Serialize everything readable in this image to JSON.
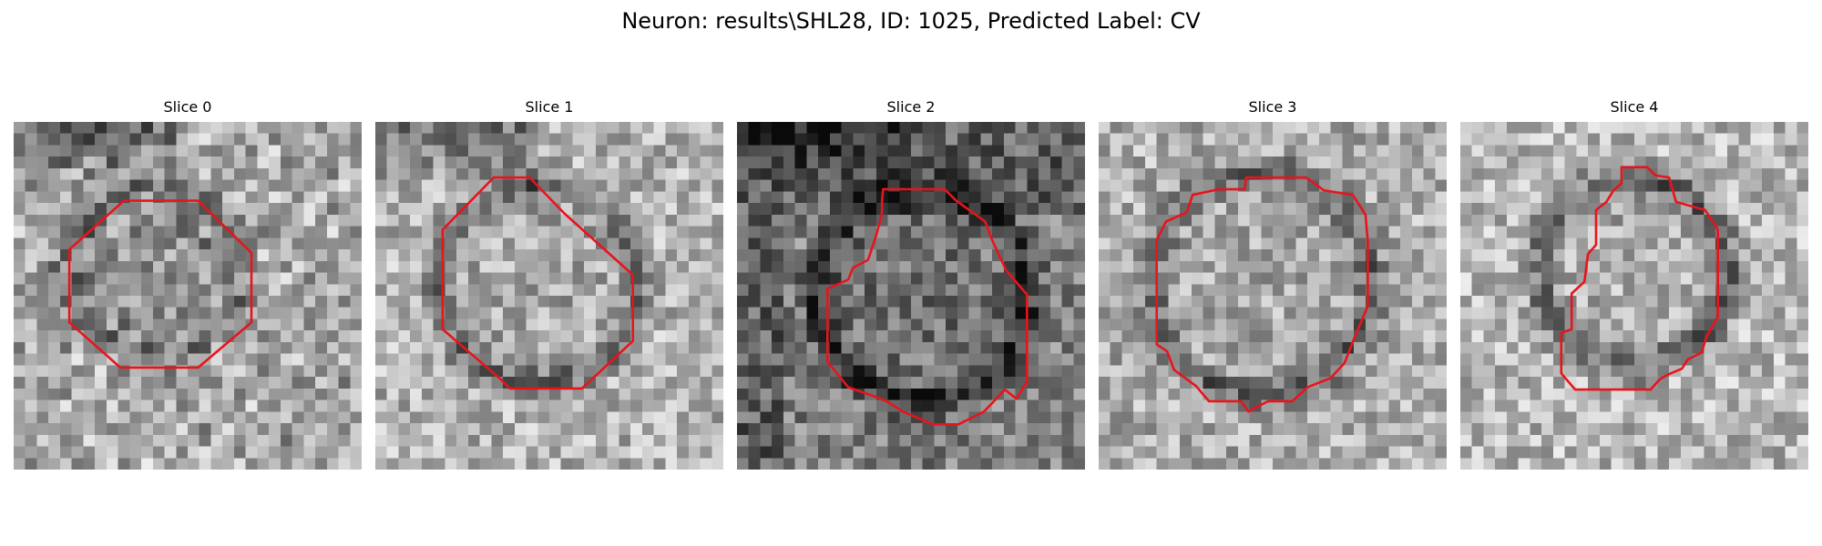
{
  "figure": {
    "title": "Neuron: results\\SHL28, ID: 1025, Predicted Label: CV"
  },
  "panels": [
    {
      "label": "Slice 0"
    },
    {
      "label": "Slice 1"
    },
    {
      "label": "Slice 2"
    },
    {
      "label": "Slice 3"
    },
    {
      "label": "Slice 4"
    }
  ],
  "colors": {
    "contour": "#e8141c",
    "background": "#ffffff"
  }
}
